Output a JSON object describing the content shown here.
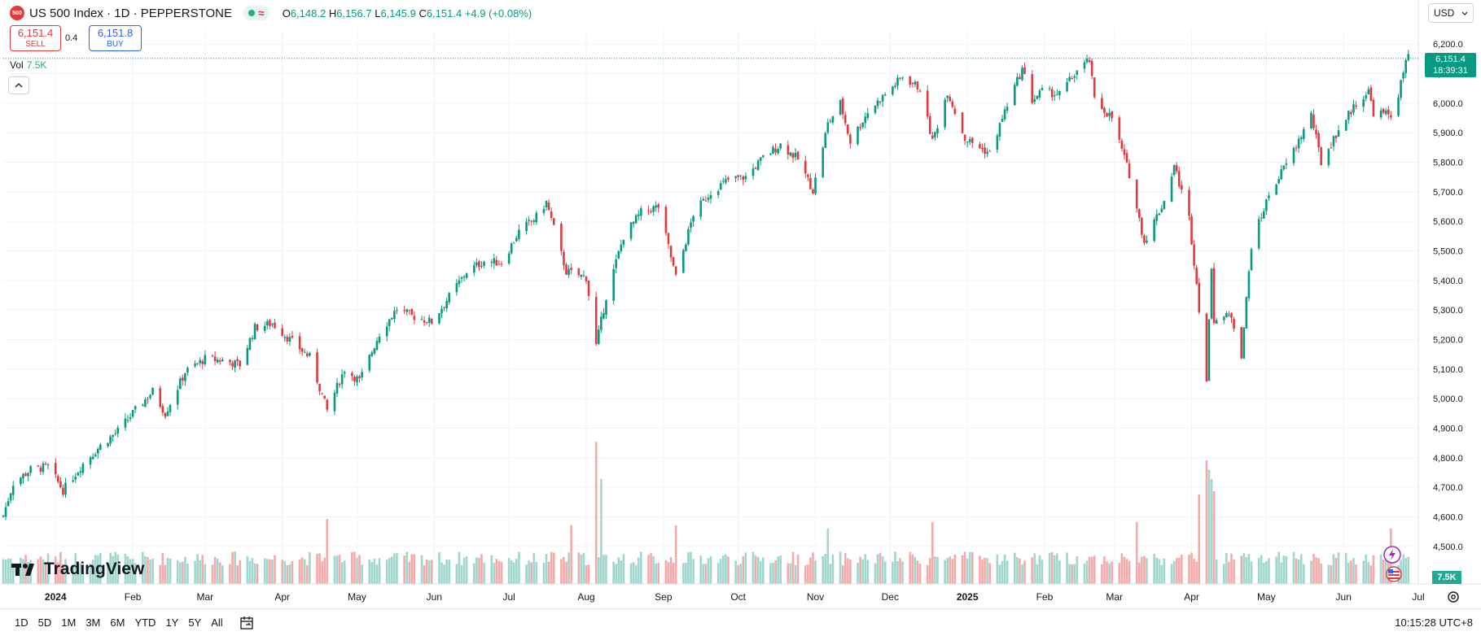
{
  "symbol": {
    "badge": "500",
    "title": "US 500 Index · 1D · PEPPERSTONE",
    "open_label": "O",
    "open": "6,148.2",
    "high_label": "H",
    "high": "6,156.7",
    "low_label": "L",
    "low": "6,145.9",
    "close_label": "C",
    "close": "6,151.4",
    "change": "+4.9 (+0.08%)"
  },
  "trade": {
    "sell_price": "6,151.4",
    "sell_label": "SELL",
    "spread": "0.4",
    "buy_price": "6,151.8",
    "buy_label": "BUY"
  },
  "volume_legend": {
    "label": "Vol",
    "value": "7.5K"
  },
  "currency": "USD",
  "last_price_tag": {
    "price": "6,151.4",
    "countdown": "18:39:31"
  },
  "volume_tag": "7.5K",
  "logo_text": "TradingView",
  "ranges": [
    "1D",
    "5D",
    "1M",
    "3M",
    "6M",
    "YTD",
    "1Y",
    "5Y",
    "All"
  ],
  "clock": "10:15:28 UTC+8",
  "colors": {
    "up": "#089981",
    "down": "#e03a3e",
    "up_vol": "#9fd6cd",
    "down_vol": "#f3aaa8",
    "accent": "#2962ff"
  },
  "chart_data": {
    "type": "candlestick",
    "title": "US 500 Index · 1D · PEPPERSTONE",
    "ylim": [
      4450,
      6250
    ],
    "y_ticks": [
      6200,
      6100,
      6000,
      5900,
      5800,
      5700,
      5600,
      5500,
      5400,
      5300,
      5200,
      5100,
      5000,
      4900,
      4800,
      4700,
      4600,
      4500
    ],
    "y_tick_labels": [
      "6,200.0",
      "6,100.0",
      "6,000.0",
      "5,900.0",
      "5,800.0",
      "5,700.0",
      "5,600.0",
      "5,500.0",
      "5,400.0",
      "5,300.0",
      "5,200.0",
      "5,100.0",
      "5,000.0",
      "4,900.0",
      "4,800.0",
      "4,700.0",
      "4,600.0",
      "4,500.0"
    ],
    "x_labels": [
      "2024",
      "Feb",
      "Mar",
      "Apr",
      "May",
      "Jun",
      "Jul",
      "Aug",
      "Sep",
      "Oct",
      "Nov",
      "Dec",
      "2025",
      "Feb",
      "Mar",
      "Apr",
      "May",
      "Jun",
      "Jul"
    ],
    "x_label_bold": [
      "2024",
      "2025"
    ],
    "x_range": [
      "2023-12-11",
      "2025-07-01"
    ],
    "x_label_dates": [
      "2024-01-01",
      "2024-02-01",
      "2024-03-01",
      "2024-04-01",
      "2024-05-01",
      "2024-06-01",
      "2024-07-01",
      "2024-08-01",
      "2024-09-01",
      "2024-10-01",
      "2024-11-01",
      "2024-12-01",
      "2025-01-01",
      "2025-02-01",
      "2025-03-01",
      "2025-04-01",
      "2025-05-01",
      "2025-06-01",
      "2025-07-01"
    ],
    "last_price": 6151.4,
    "close_path": [
      {
        "d": "2023-12-11",
        "c": 4605
      },
      {
        "d": "2023-12-15",
        "c": 4715
      },
      {
        "d": "2023-12-22",
        "c": 4760
      },
      {
        "d": "2023-12-29",
        "c": 4770
      },
      {
        "d": "2024-01-04",
        "c": 4690
      },
      {
        "d": "2024-01-12",
        "c": 4780
      },
      {
        "d": "2024-01-19",
        "c": 4840
      },
      {
        "d": "2024-01-26",
        "c": 4890
      },
      {
        "d": "2024-02-02",
        "c": 4960
      },
      {
        "d": "2024-02-09",
        "c": 5025
      },
      {
        "d": "2024-02-14",
        "c": 4950
      },
      {
        "d": "2024-02-22",
        "c": 5090
      },
      {
        "d": "2024-03-01",
        "c": 5135
      },
      {
        "d": "2024-03-08",
        "c": 5130
      },
      {
        "d": "2024-03-15",
        "c": 5115
      },
      {
        "d": "2024-03-21",
        "c": 5240
      },
      {
        "d": "2024-03-28",
        "c": 5255
      },
      {
        "d": "2024-04-04",
        "c": 5200
      },
      {
        "d": "2024-04-12",
        "c": 5140
      },
      {
        "d": "2024-04-19",
        "c": 4960
      },
      {
        "d": "2024-04-26",
        "c": 5100
      },
      {
        "d": "2024-05-02",
        "c": 5060
      },
      {
        "d": "2024-05-10",
        "c": 5220
      },
      {
        "d": "2024-05-17",
        "c": 5305
      },
      {
        "d": "2024-05-23",
        "c": 5280
      },
      {
        "d": "2024-05-31",
        "c": 5260
      },
      {
        "d": "2024-06-07",
        "c": 5345
      },
      {
        "d": "2024-06-14",
        "c": 5430
      },
      {
        "d": "2024-06-21",
        "c": 5465
      },
      {
        "d": "2024-06-28",
        "c": 5460
      },
      {
        "d": "2024-07-05",
        "c": 5565
      },
      {
        "d": "2024-07-12",
        "c": 5615
      },
      {
        "d": "2024-07-16",
        "c": 5665
      },
      {
        "d": "2024-07-24",
        "c": 5430
      },
      {
        "d": "2024-08-01",
        "c": 5410
      },
      {
        "d": "2024-08-05",
        "c": 5180
      },
      {
        "d": "2024-08-09",
        "c": 5345
      },
      {
        "d": "2024-08-16",
        "c": 5550
      },
      {
        "d": "2024-08-23",
        "c": 5630
      },
      {
        "d": "2024-08-30",
        "c": 5650
      },
      {
        "d": "2024-09-06",
        "c": 5410
      },
      {
        "d": "2024-09-13",
        "c": 5625
      },
      {
        "d": "2024-09-20",
        "c": 5700
      },
      {
        "d": "2024-09-27",
        "c": 5740
      },
      {
        "d": "2024-10-04",
        "c": 5750
      },
      {
        "d": "2024-10-11",
        "c": 5815
      },
      {
        "d": "2024-10-18",
        "c": 5860
      },
      {
        "d": "2024-10-25",
        "c": 5810
      },
      {
        "d": "2024-10-31",
        "c": 5705
      },
      {
        "d": "2024-11-06",
        "c": 5930
      },
      {
        "d": "2024-11-11",
        "c": 6000
      },
      {
        "d": "2024-11-15",
        "c": 5870
      },
      {
        "d": "2024-11-22",
        "c": 5970
      },
      {
        "d": "2024-11-29",
        "c": 6030
      },
      {
        "d": "2024-12-06",
        "c": 6090
      },
      {
        "d": "2024-12-13",
        "c": 6050
      },
      {
        "d": "2024-12-18",
        "c": 5870
      },
      {
        "d": "2024-12-24",
        "c": 6040
      },
      {
        "d": "2024-12-31",
        "c": 5880
      },
      {
        "d": "2025-01-10",
        "c": 5830
      },
      {
        "d": "2025-01-17",
        "c": 5995
      },
      {
        "d": "2025-01-23",
        "c": 6115
      },
      {
        "d": "2025-01-27",
        "c": 6010
      },
      {
        "d": "2025-01-31",
        "c": 6040
      },
      {
        "d": "2025-02-07",
        "c": 6030
      },
      {
        "d": "2025-02-14",
        "c": 6110
      },
      {
        "d": "2025-02-19",
        "c": 6145
      },
      {
        "d": "2025-02-21",
        "c": 6010
      },
      {
        "d": "2025-02-28",
        "c": 5950
      },
      {
        "d": "2025-03-07",
        "c": 5760
      },
      {
        "d": "2025-03-13",
        "c": 5530
      },
      {
        "d": "2025-03-21",
        "c": 5670
      },
      {
        "d": "2025-03-25",
        "c": 5790
      },
      {
        "d": "2025-03-31",
        "c": 5610
      },
      {
        "d": "2025-04-03",
        "c": 5390
      },
      {
        "d": "2025-04-07",
        "c": 5060
      },
      {
        "d": "2025-04-09",
        "c": 5450
      },
      {
        "d": "2025-04-10",
        "c": 5270
      },
      {
        "d": "2025-04-17",
        "c": 5280
      },
      {
        "d": "2025-04-21",
        "c": 5150
      },
      {
        "d": "2025-04-25",
        "c": 5520
      },
      {
        "d": "2025-05-02",
        "c": 5690
      },
      {
        "d": "2025-05-12",
        "c": 5840
      },
      {
        "d": "2025-05-19",
        "c": 5960
      },
      {
        "d": "2025-05-23",
        "c": 5800
      },
      {
        "d": "2025-05-30",
        "c": 5910
      },
      {
        "d": "2025-06-06",
        "c": 6000
      },
      {
        "d": "2025-06-11",
        "c": 6040
      },
      {
        "d": "2025-06-13",
        "c": 5970
      },
      {
        "d": "2025-06-20",
        "c": 5960
      },
      {
        "d": "2025-06-23",
        "c": 6030
      },
      {
        "d": "2025-06-26",
        "c": 6140
      },
      {
        "d": "2025-06-27",
        "c": 6151.4
      }
    ],
    "volume_spikes": [
      {
        "d": "2024-04-19",
        "v": 2.1
      },
      {
        "d": "2024-07-26",
        "v": 1.9
      },
      {
        "d": "2024-08-05",
        "v": 4.6
      },
      {
        "d": "2024-08-07",
        "v": 3.4
      },
      {
        "d": "2024-09-06",
        "v": 1.9
      },
      {
        "d": "2024-11-06",
        "v": 1.8
      },
      {
        "d": "2024-12-18",
        "v": 2.0
      },
      {
        "d": "2025-03-10",
        "v": 2.0
      },
      {
        "d": "2025-04-04",
        "v": 2.9
      },
      {
        "d": "2025-04-07",
        "v": 4.0
      },
      {
        "d": "2025-04-08",
        "v": 3.7
      },
      {
        "d": "2025-04-09",
        "v": 3.4
      },
      {
        "d": "2025-04-10",
        "v": 3.0
      },
      {
        "d": "2025-06-20",
        "v": 1.8
      }
    ],
    "base_volume": 0.6
  }
}
